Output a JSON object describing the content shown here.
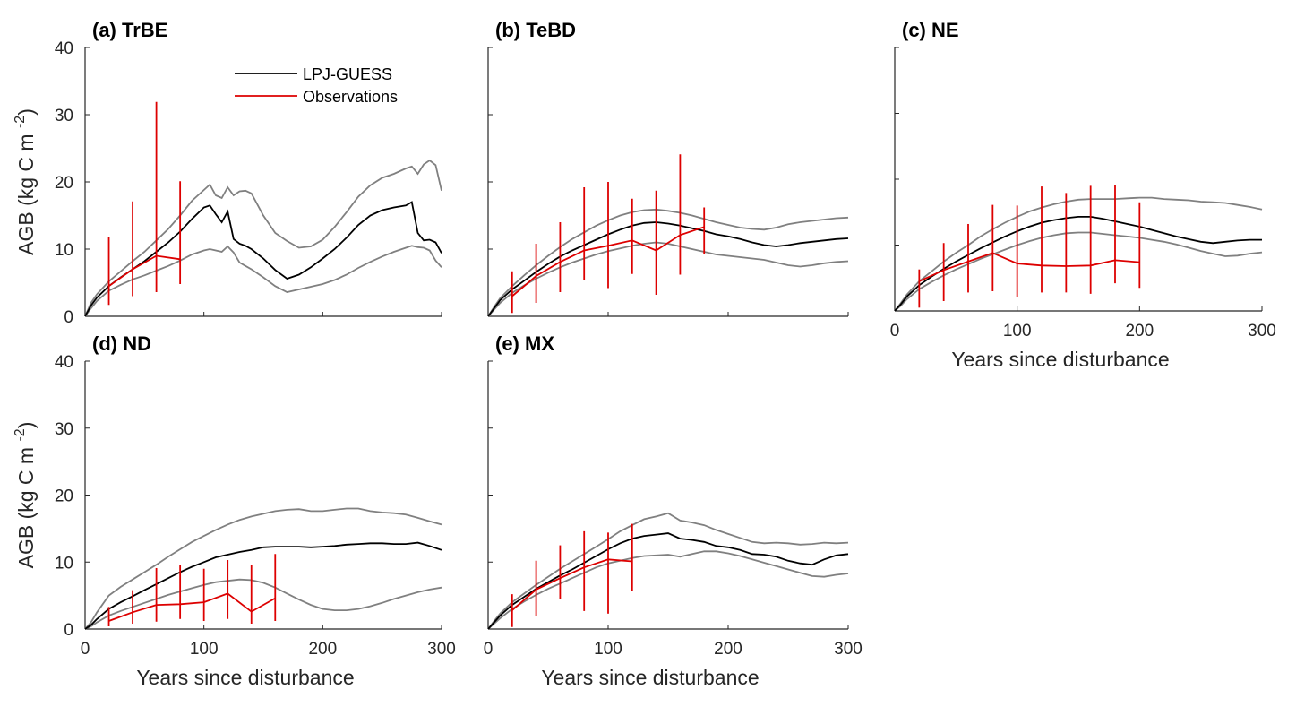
{
  "colors": {
    "model": "#000000",
    "model_range": "#808080",
    "observations": "#dd0000",
    "axis": "#262626"
  },
  "legend": {
    "entries": [
      "LPJ-GUESS",
      "Observations"
    ],
    "placement": "top-center of panel (a)"
  },
  "chart_data": [
    {
      "type": "line",
      "title": "(a) TrBE",
      "ylabel": "AGB (kg C m -2)",
      "xlabel": "",
      "xlim": [
        0,
        300
      ],
      "ylim": [
        0,
        40
      ],
      "xticks": [
        0,
        100,
        200,
        300
      ],
      "yticks": [
        0,
        10,
        20,
        30,
        40
      ],
      "show_xticklabels": false,
      "show_yticklabels": true,
      "show_legend": true,
      "model": {
        "x": [
          0,
          5,
          10,
          20,
          30,
          40,
          50,
          60,
          70,
          80,
          90,
          100,
          105,
          110,
          115,
          120,
          125,
          130,
          135,
          140,
          150,
          160,
          170,
          180,
          190,
          200,
          210,
          220,
          230,
          240,
          250,
          260,
          270,
          275,
          280,
          285,
          290,
          295,
          300
        ],
        "mean": [
          0,
          1.6,
          2.8,
          4.5,
          5.8,
          7.0,
          8.2,
          9.6,
          11.0,
          12.6,
          14.5,
          16.2,
          16.5,
          15.2,
          14.0,
          15.6,
          11.5,
          10.8,
          10.5,
          10.0,
          8.6,
          6.9,
          5.6,
          6.2,
          7.3,
          8.6,
          10.0,
          11.7,
          13.6,
          15.0,
          15.8,
          16.2,
          16.5,
          17.0,
          12.4,
          11.3,
          11.4,
          11.0,
          9.4
        ],
        "upper": [
          0,
          2.0,
          3.3,
          5.2,
          6.7,
          8.2,
          9.6,
          11.3,
          13.0,
          15.0,
          17.2,
          18.8,
          19.6,
          18.0,
          17.6,
          19.2,
          18.0,
          18.6,
          18.7,
          18.3,
          15.0,
          12.4,
          11.2,
          10.2,
          10.4,
          11.4,
          13.3,
          15.5,
          17.8,
          19.5,
          20.6,
          21.2,
          22.0,
          22.3,
          21.2,
          22.6,
          23.2,
          22.5,
          18.7
        ],
        "lower": [
          0,
          1.2,
          2.3,
          3.8,
          4.7,
          5.5,
          6.1,
          6.8,
          7.5,
          8.3,
          9.2,
          9.8,
          10.0,
          9.8,
          9.6,
          10.4,
          9.5,
          8.0,
          7.5,
          7.0,
          5.8,
          4.5,
          3.6,
          4.0,
          4.4,
          4.8,
          5.4,
          6.2,
          7.2,
          8.1,
          8.9,
          9.6,
          10.2,
          10.5,
          10.3,
          10.2,
          9.8,
          8.3,
          7.3
        ]
      },
      "obs": {
        "x": [
          20,
          40,
          60,
          80
        ],
        "mean": [
          4.5,
          7.0,
          9.0,
          8.5
        ],
        "low": [
          1.7,
          3.0,
          3.6,
          4.8
        ],
        "high": [
          11.8,
          17.1,
          31.9,
          20.1
        ]
      }
    },
    {
      "type": "line",
      "title": "(b) TeBD",
      "ylabel": "",
      "xlabel": "",
      "xlim": [
        0,
        300
      ],
      "ylim": [
        0,
        40
      ],
      "xticks": [
        0,
        100,
        200,
        300
      ],
      "yticks": [
        0,
        10,
        20,
        30,
        40
      ],
      "show_xticklabels": false,
      "show_yticklabels": false,
      "show_legend": false,
      "model": {
        "x": [
          0,
          5,
          10,
          20,
          30,
          40,
          50,
          60,
          70,
          80,
          90,
          100,
          110,
          120,
          130,
          140,
          150,
          160,
          170,
          180,
          190,
          200,
          210,
          220,
          230,
          240,
          250,
          260,
          270,
          280,
          290,
          300
        ],
        "mean": [
          0,
          1.2,
          2.4,
          4.0,
          5.3,
          6.6,
          7.8,
          8.9,
          9.8,
          10.6,
          11.4,
          12.2,
          12.9,
          13.5,
          13.9,
          14.0,
          13.8,
          13.5,
          13.1,
          12.7,
          12.2,
          11.9,
          11.5,
          11.0,
          10.6,
          10.4,
          10.6,
          10.9,
          11.1,
          11.3,
          11.5,
          11.6
        ],
        "upper": [
          0,
          1.4,
          2.7,
          4.5,
          6.1,
          7.6,
          9.0,
          10.3,
          11.5,
          12.5,
          13.5,
          14.3,
          15.0,
          15.5,
          15.8,
          15.9,
          15.7,
          15.4,
          15.0,
          14.5,
          14.0,
          13.6,
          13.2,
          13.0,
          12.9,
          13.2,
          13.7,
          14.0,
          14.2,
          14.4,
          14.6,
          14.7
        ],
        "lower": [
          0,
          1.0,
          2.0,
          3.5,
          4.6,
          5.6,
          6.5,
          7.3,
          8.0,
          8.6,
          9.2,
          9.7,
          10.1,
          10.5,
          10.8,
          11.0,
          10.8,
          10.4,
          10.0,
          9.6,
          9.2,
          9.0,
          8.8,
          8.6,
          8.4,
          8.0,
          7.6,
          7.4,
          7.6,
          7.9,
          8.1,
          8.2
        ]
      },
      "obs": {
        "x": [
          20,
          40,
          60,
          80,
          100,
          120,
          140,
          160,
          180
        ],
        "mean": [
          3.0,
          6.0,
          8.1,
          9.8,
          10.5,
          11.3,
          9.8,
          12.1,
          13.3
        ],
        "low": [
          0.5,
          2.0,
          3.6,
          5.4,
          4.2,
          6.3,
          3.2,
          6.2,
          9.2
        ],
        "high": [
          6.7,
          10.8,
          14.0,
          19.2,
          20.0,
          17.5,
          18.7,
          24.1,
          16.2
        ]
      }
    },
    {
      "type": "line",
      "title": "(c) NE",
      "ylabel": "",
      "xlabel": "Years since disturbance",
      "xlim": [
        0,
        300
      ],
      "ylim": [
        0,
        40
      ],
      "xticks": [
        0,
        100,
        200,
        300
      ],
      "yticks": [
        0,
        10,
        20,
        30,
        40
      ],
      "show_xticklabels": true,
      "show_yticklabels": false,
      "show_legend": false,
      "model": {
        "x": [
          0,
          5,
          10,
          20,
          30,
          40,
          50,
          60,
          70,
          80,
          90,
          100,
          110,
          120,
          130,
          140,
          150,
          160,
          170,
          180,
          190,
          200,
          210,
          220,
          230,
          240,
          250,
          260,
          270,
          280,
          290,
          300
        ],
        "mean": [
          0,
          1.0,
          2.2,
          3.9,
          5.2,
          6.4,
          7.5,
          8.5,
          9.5,
          10.4,
          11.3,
          12.1,
          12.8,
          13.4,
          13.8,
          14.1,
          14.3,
          14.3,
          14.0,
          13.6,
          13.2,
          12.8,
          12.3,
          11.8,
          11.3,
          10.9,
          10.5,
          10.3,
          10.5,
          10.7,
          10.8,
          10.8
        ],
        "upper": [
          0,
          1.2,
          2.5,
          4.5,
          6.0,
          7.5,
          8.8,
          10.0,
          11.3,
          12.4,
          13.4,
          14.3,
          15.1,
          15.7,
          16.2,
          16.6,
          16.9,
          17.0,
          17.0,
          17.0,
          17.1,
          17.2,
          17.2,
          17.0,
          16.9,
          16.8,
          16.6,
          16.5,
          16.4,
          16.1,
          15.8,
          15.4
        ],
        "lower": [
          0,
          0.8,
          1.8,
          3.3,
          4.4,
          5.4,
          6.3,
          7.1,
          7.9,
          8.6,
          9.3,
          10.0,
          10.6,
          11.1,
          11.5,
          11.8,
          11.9,
          11.9,
          11.7,
          11.5,
          11.3,
          11.1,
          10.8,
          10.5,
          10.1,
          9.6,
          9.1,
          8.7,
          8.3,
          8.4,
          8.7,
          8.9
        ]
      },
      "obs": {
        "x": [
          20,
          40,
          60,
          80,
          100,
          120,
          140,
          160,
          180,
          200
        ],
        "mean": [
          4.5,
          6.2,
          7.5,
          8.8,
          7.2,
          6.9,
          6.8,
          6.9,
          7.7,
          7.4
        ],
        "low": [
          0.5,
          1.5,
          2.8,
          3.0,
          2.1,
          2.8,
          2.8,
          2.6,
          4.2,
          3.5
        ],
        "high": [
          6.3,
          10.3,
          13.2,
          16.1,
          16.0,
          18.9,
          17.9,
          19.0,
          19.1,
          16.5
        ]
      }
    },
    {
      "type": "line",
      "title": "(d) ND",
      "ylabel": "AGB (kg C m -2)",
      "xlabel": "Years since disturbance",
      "xlim": [
        0,
        300
      ],
      "ylim": [
        0,
        40
      ],
      "xticks": [
        0,
        100,
        200,
        300
      ],
      "yticks": [
        0,
        10,
        20,
        30,
        40
      ],
      "show_xticklabels": true,
      "show_yticklabels": true,
      "show_legend": false,
      "model": {
        "x": [
          0,
          5,
          10,
          20,
          30,
          40,
          50,
          60,
          70,
          80,
          90,
          100,
          110,
          120,
          130,
          140,
          150,
          160,
          170,
          180,
          190,
          200,
          210,
          220,
          230,
          240,
          250,
          260,
          270,
          280,
          290,
          300
        ],
        "mean": [
          0,
          0.6,
          1.5,
          3.0,
          4.0,
          4.9,
          5.8,
          6.7,
          7.6,
          8.5,
          9.3,
          10.0,
          10.7,
          11.1,
          11.5,
          11.8,
          12.2,
          12.3,
          12.3,
          12.3,
          12.2,
          12.3,
          12.4,
          12.6,
          12.7,
          12.8,
          12.8,
          12.7,
          12.7,
          12.9,
          12.4,
          11.8
        ],
        "upper": [
          0,
          1.0,
          2.5,
          5.0,
          6.3,
          7.4,
          8.5,
          9.6,
          10.8,
          11.9,
          13.0,
          13.9,
          14.8,
          15.6,
          16.3,
          16.8,
          17.2,
          17.6,
          17.8,
          17.9,
          17.6,
          17.6,
          17.8,
          18.0,
          18.0,
          17.6,
          17.4,
          17.3,
          17.1,
          16.6,
          16.1,
          15.6
        ],
        "lower": [
          0,
          0.4,
          1.0,
          2.0,
          2.7,
          3.3,
          3.9,
          4.5,
          5.1,
          5.6,
          6.1,
          6.6,
          7.0,
          7.2,
          7.4,
          7.3,
          6.9,
          6.2,
          5.3,
          4.4,
          3.6,
          3.0,
          2.8,
          2.8,
          3.0,
          3.4,
          3.9,
          4.5,
          5.0,
          5.5,
          5.9,
          6.2
        ]
      },
      "obs": {
        "x": [
          20,
          40,
          60,
          80,
          100,
          120,
          140,
          160
        ],
        "mean": [
          1.2,
          2.5,
          3.6,
          3.7,
          4.0,
          5.3,
          2.6,
          4.6
        ],
        "low": [
          0.4,
          0.8,
          1.1,
          1.5,
          1.2,
          1.5,
          0.8,
          1.2
        ],
        "high": [
          3.3,
          5.8,
          9.1,
          9.6,
          9.0,
          10.3,
          9.6,
          11.2
        ]
      }
    },
    {
      "type": "line",
      "title": "(e) MX",
      "ylabel": "",
      "xlabel": "Years since disturbance",
      "xlim": [
        0,
        300
      ],
      "ylim": [
        0,
        40
      ],
      "xticks": [
        0,
        100,
        200,
        300
      ],
      "yticks": [
        0,
        10,
        20,
        30,
        40
      ],
      "show_xticklabels": true,
      "show_yticklabels": false,
      "show_legend": false,
      "model": {
        "x": [
          0,
          5,
          10,
          20,
          30,
          40,
          50,
          60,
          70,
          80,
          90,
          100,
          110,
          120,
          130,
          140,
          150,
          160,
          170,
          180,
          190,
          200,
          210,
          220,
          230,
          240,
          250,
          260,
          270,
          280,
          290,
          300
        ],
        "mean": [
          0,
          1.0,
          2.0,
          3.6,
          4.8,
          6.0,
          7.0,
          8.0,
          8.9,
          9.9,
          10.9,
          11.9,
          12.8,
          13.5,
          13.9,
          14.1,
          14.3,
          13.5,
          13.3,
          13.0,
          12.4,
          12.2,
          11.8,
          11.2,
          11.1,
          10.8,
          10.2,
          9.8,
          9.6,
          10.4,
          11.0,
          11.2
        ],
        "upper": [
          0,
          1.2,
          2.3,
          4.0,
          5.3,
          6.6,
          7.8,
          9.0,
          10.1,
          11.2,
          12.3,
          13.4,
          14.6,
          15.5,
          16.4,
          16.8,
          17.3,
          16.2,
          15.9,
          15.5,
          14.8,
          14.2,
          13.6,
          13.0,
          12.8,
          12.9,
          12.8,
          12.6,
          12.7,
          12.9,
          12.8,
          12.9
        ],
        "lower": [
          0,
          0.8,
          1.6,
          3.0,
          4.1,
          5.1,
          6.0,
          6.8,
          7.6,
          8.4,
          9.2,
          9.8,
          10.2,
          10.6,
          10.9,
          11.0,
          11.1,
          10.8,
          11.2,
          11.6,
          11.6,
          11.3,
          10.9,
          10.4,
          9.9,
          9.4,
          8.9,
          8.4,
          7.9,
          7.8,
          8.1,
          8.3
        ]
      },
      "obs": {
        "x": [
          20,
          40,
          60,
          80,
          100,
          120
        ],
        "mean": [
          2.8,
          5.9,
          7.6,
          9.2,
          10.4,
          10.1
        ],
        "low": [
          0.3,
          2.0,
          4.5,
          2.7,
          2.3,
          5.7
        ],
        "high": [
          5.2,
          10.2,
          12.5,
          14.6,
          14.4,
          15.7
        ]
      }
    }
  ]
}
